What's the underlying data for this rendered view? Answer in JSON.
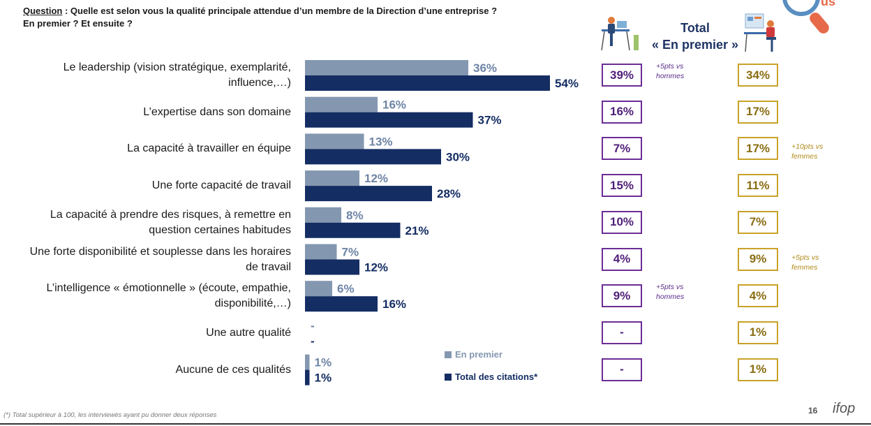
{
  "question": {
    "label": "Question",
    "text": " : Quelle est selon vous la qualité principale attendue d’un membre de la Direction d’une entreprise ?",
    "line2": "En premier ? Et ensuite ?"
  },
  "header": {
    "total_line1": "Total",
    "total_line2": "« En premier »"
  },
  "chart_data": {
    "type": "bar",
    "orientation": "horizontal",
    "categories": [
      "Le leadership (vision stratégique, exemplarité, influence,…)",
      "L’expertise dans son domaine",
      "La capacité à travailler en équipe",
      "Une forte capacité de travail",
      "La capacité à prendre des risques, à remettre en question certaines habitudes",
      "Une forte disponibilité et souplesse dans les horaires de travail",
      "L’intelligence « émotionnelle » (écoute, empathie, disponibilité,…)",
      "Une autre qualité",
      "Aucune de ces qualités"
    ],
    "category_lines": [
      [
        "Le leadership (vision stratégique, exemplarité,",
        "influence,…)"
      ],
      [
        "L’expertise dans son domaine"
      ],
      [
        "La capacité à travailler en équipe"
      ],
      [
        "Une forte capacité de travail"
      ],
      [
        "La capacité à prendre des risques, à remettre en",
        "question certaines habitudes"
      ],
      [
        "Une forte disponibilité et souplesse dans les horaires",
        "de travail"
      ],
      [
        "L’intelligence « émotionnelle » (écoute, empathie,",
        "disponibilité,…)"
      ],
      [
        "Une autre qualité"
      ],
      [
        "Aucune de ces qualités"
      ]
    ],
    "series": [
      {
        "name": "En premier",
        "color": "#8497b0",
        "values": [
          36,
          16,
          13,
          12,
          8,
          7,
          6,
          null,
          1
        ],
        "labels": [
          "36%",
          "16%",
          "13%",
          "12%",
          "8%",
          "7%",
          "6%",
          "-",
          "1%"
        ]
      },
      {
        "name": "Total des citations*",
        "color": "#142d63",
        "values": [
          54,
          37,
          30,
          28,
          21,
          12,
          16,
          null,
          1
        ],
        "labels": [
          "54%",
          "37%",
          "30%",
          "28%",
          "21%",
          "12%",
          "16%",
          "-",
          "1%"
        ]
      }
    ],
    "women_en_premier": [
      "39%",
      "16%",
      "7%",
      "15%",
      "10%",
      "4%",
      "9%",
      "-",
      "-"
    ],
    "men_en_premier": [
      "34%",
      "17%",
      "17%",
      "11%",
      "7%",
      "9%",
      "4%",
      "1%",
      "1%"
    ],
    "notes": [
      {
        "row": 0,
        "side": "women",
        "text": [
          "+5pts vs",
          "hommes"
        ]
      },
      {
        "row": 6,
        "side": "women",
        "text": [
          "+5pts vs",
          "hommes"
        ]
      },
      {
        "row": 2,
        "side": "men",
        "text": [
          "+10pts vs",
          "femmes"
        ]
      },
      {
        "row": 5,
        "side": "men",
        "text": [
          "+5pts vs",
          "femmes"
        ]
      }
    ],
    "xlim": [
      0,
      54
    ]
  },
  "legend": {
    "en_premier": "En premier",
    "total": "Total des citations*"
  },
  "footnote": "(*) Total supérieur à 100, les interviewés ayant pu donner deux réponses",
  "page_number": "16",
  "logo": "ifop",
  "icons": {
    "women": "woman-at-desk-icon",
    "men": "man-at-desk-icon",
    "focus": "magnifier-focus-icon"
  }
}
